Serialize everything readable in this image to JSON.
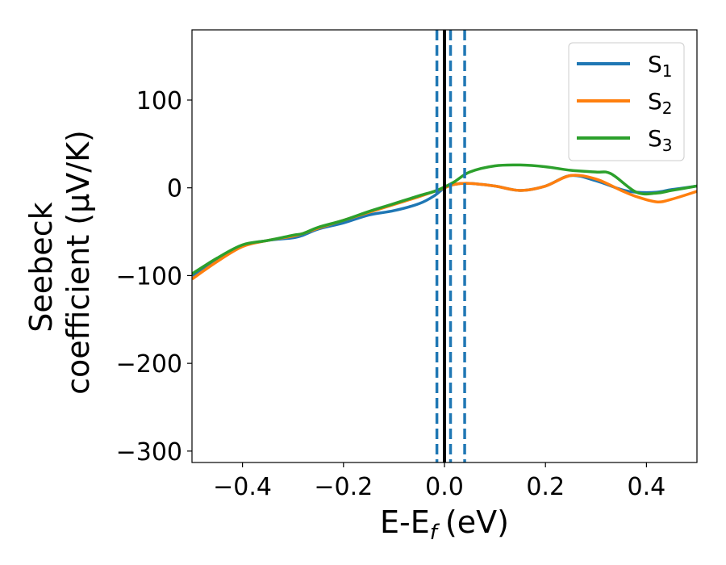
{
  "chart_data": {
    "type": "line",
    "xlabel": "E-E",
    "xlabel_subscript": "f",
    "xlabel_units": "(eV)",
    "ylabel_line1": "Seebeck",
    "ylabel_line2": "coefficient  (μV/K)",
    "xlim": [
      -0.5,
      0.5
    ],
    "ylim": [
      -313,
      180
    ],
    "x_ticks": [
      -0.4,
      -0.2,
      0.0,
      0.2,
      0.4
    ],
    "x_tick_labels": [
      "−0.4",
      "−0.2",
      "0.0",
      "0.2",
      "0.4"
    ],
    "y_ticks": [
      100,
      0,
      -100,
      -200,
      -300
    ],
    "y_tick_labels": [
      "100",
      "0",
      "−100",
      "−200",
      "−300"
    ],
    "legend_position": "top-right",
    "vlines": [
      {
        "x": 0.0,
        "style": "solid",
        "color": "#000000"
      },
      {
        "x": -0.015,
        "style": "dashed",
        "color": "#1f77b4"
      },
      {
        "x": 0.012,
        "style": "dashed",
        "color": "#1f77b4"
      },
      {
        "x": 0.04,
        "style": "dashed",
        "color": "#1f77b4"
      }
    ],
    "series": [
      {
        "name": "S",
        "subscript": "1",
        "color": "#1f77b4",
        "x": [
          -0.5,
          -0.45,
          -0.4,
          -0.35,
          -0.3,
          -0.28,
          -0.25,
          -0.2,
          -0.15,
          -0.1,
          -0.05,
          -0.02,
          0.0,
          0.02,
          0.05,
          0.1,
          0.15,
          0.2,
          0.25,
          0.3,
          0.35,
          0.38,
          0.42,
          0.45,
          0.5
        ],
        "y": [
          -100,
          -82,
          -66,
          -60,
          -57,
          -54,
          -47,
          -40,
          -31,
          -26,
          -18,
          -9,
          0,
          4,
          5,
          2,
          -3,
          2,
          14,
          8,
          -2,
          -5,
          -5,
          -2,
          2
        ]
      },
      {
        "name": "S",
        "subscript": "2",
        "color": "#ff7f0e",
        "x": [
          -0.5,
          -0.45,
          -0.4,
          -0.35,
          -0.3,
          -0.28,
          -0.25,
          -0.2,
          -0.15,
          -0.1,
          -0.05,
          -0.02,
          0.0,
          0.02,
          0.05,
          0.1,
          0.15,
          0.2,
          0.25,
          0.3,
          0.35,
          0.38,
          0.42,
          0.45,
          0.5
        ],
        "y": [
          -104,
          -84,
          -67,
          -60,
          -55,
          -52,
          -46,
          -37,
          -28,
          -19,
          -10,
          -4,
          0,
          4,
          5,
          2,
          -3,
          2,
          14,
          10,
          -3,
          -10,
          -16,
          -13,
          -4
        ]
      },
      {
        "name": "S",
        "subscript": "3",
        "color": "#2ca02c",
        "x": [
          -0.5,
          -0.45,
          -0.4,
          -0.35,
          -0.3,
          -0.28,
          -0.25,
          -0.2,
          -0.15,
          -0.1,
          -0.05,
          -0.02,
          0.0,
          0.02,
          0.05,
          0.1,
          0.15,
          0.2,
          0.25,
          0.3,
          0.33,
          0.38,
          0.42,
          0.45,
          0.5
        ],
        "y": [
          -98,
          -80,
          -65,
          -60,
          -54,
          -52,
          -45,
          -37,
          -27,
          -18,
          -9,
          -4,
          1,
          7,
          18,
          25,
          26,
          24,
          20,
          18,
          16,
          -5,
          -6,
          -3,
          2
        ]
      }
    ]
  }
}
